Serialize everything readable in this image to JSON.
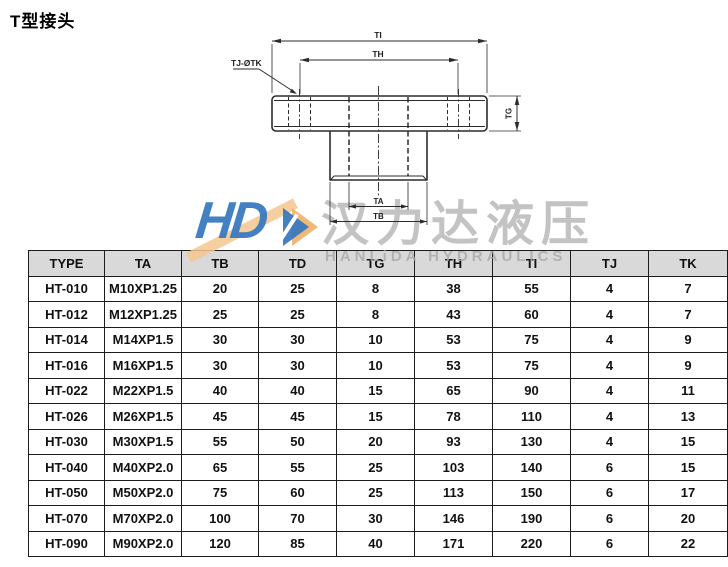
{
  "title": "T型接头",
  "drawing": {
    "dim_ti": "TI",
    "dim_th": "TH",
    "dim_tg": "TG",
    "dim_ta": "TA",
    "dim_tb": "TB",
    "hole_callout": "TJ-ØTK"
  },
  "watermark": {
    "logo_text": "HD",
    "brand_cn": "汉力达液压",
    "brand_en": "HANLiDA HYDRAULICS",
    "logo_blue": "#3476be",
    "logo_orange": "#f0ac60",
    "text_gray": "#b9b9b9"
  },
  "table": {
    "headers": [
      "TYPE",
      "TA",
      "TB",
      "TD",
      "TG",
      "TH",
      "TI",
      "TJ",
      "TK"
    ],
    "rows": [
      [
        "HT-010",
        "M10XP1.25",
        "20",
        "25",
        "8",
        "38",
        "55",
        "4",
        "7"
      ],
      [
        "HT-012",
        "M12XP1.25",
        "25",
        "25",
        "8",
        "43",
        "60",
        "4",
        "7"
      ],
      [
        "HT-014",
        "M14XP1.5",
        "30",
        "30",
        "10",
        "53",
        "75",
        "4",
        "9"
      ],
      [
        "HT-016",
        "M16XP1.5",
        "30",
        "30",
        "10",
        "53",
        "75",
        "4",
        "9"
      ],
      [
        "HT-022",
        "M22XP1.5",
        "40",
        "40",
        "15",
        "65",
        "90",
        "4",
        "11"
      ],
      [
        "HT-026",
        "M26XP1.5",
        "45",
        "45",
        "15",
        "78",
        "110",
        "4",
        "13"
      ],
      [
        "HT-030",
        "M30XP1.5",
        "55",
        "50",
        "20",
        "93",
        "130",
        "4",
        "15"
      ],
      [
        "HT-040",
        "M40XP2.0",
        "65",
        "55",
        "25",
        "103",
        "140",
        "6",
        "15"
      ],
      [
        "HT-050",
        "M50XP2.0",
        "75",
        "60",
        "25",
        "113",
        "150",
        "6",
        "17"
      ],
      [
        "HT-070",
        "M70XP2.0",
        "100",
        "70",
        "30",
        "146",
        "190",
        "6",
        "20"
      ],
      [
        "HT-090",
        "M90XP2.0",
        "120",
        "85",
        "40",
        "171",
        "220",
        "6",
        "22"
      ]
    ]
  }
}
